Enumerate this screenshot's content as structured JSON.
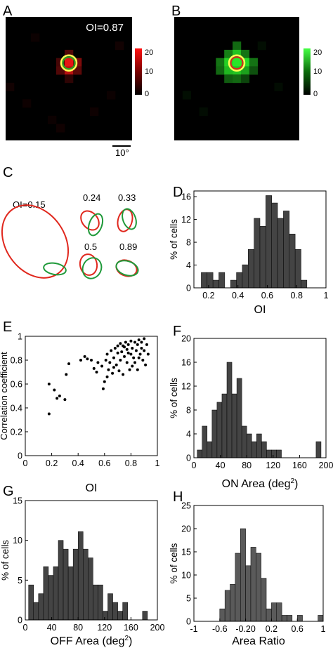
{
  "panels": {
    "A": {
      "letter": "A",
      "oi_label": "OI=0.87",
      "colorbar_ticks": [
        "20",
        "10",
        "0"
      ],
      "scalebar_label": "10°",
      "colormap": "red"
    },
    "B": {
      "letter": "B",
      "colorbar_ticks": [
        "20",
        "10",
        "0"
      ],
      "colormap": "green"
    },
    "C": {
      "letter": "C",
      "examples": [
        "OI=0.15",
        "0.24",
        "0.33",
        "0.5",
        "0.89"
      ],
      "colors": {
        "on": "#e0281e",
        "off": "#1f9a3a"
      }
    }
  },
  "chart_data": [
    {
      "id": "D",
      "letter": "D",
      "type": "bar",
      "xlabel": "OI",
      "ylabel": "% of cells",
      "xlim": [
        0.1,
        1.0
      ],
      "ylim": [
        0,
        17
      ],
      "xticks": [
        "0.2",
        "0.4",
        "0.6",
        "0.8",
        "1"
      ],
      "xtick_values": [
        0.2,
        0.4,
        0.6,
        0.8,
        1.0
      ],
      "yticks": [
        "0",
        "4",
        "8",
        "12",
        "16"
      ],
      "ytick_values": [
        0,
        4,
        8,
        12,
        16
      ],
      "bin_start": 0.15,
      "bin_width": 0.04,
      "values": [
        2.7,
        2.7,
        1.35,
        2.7,
        0,
        1.35,
        2.7,
        4.05,
        6.75,
        12.2,
        10.8,
        16.2,
        14.9,
        12.2,
        13.5,
        9.45,
        6.75,
        1.35
      ],
      "color": "#444444"
    },
    {
      "id": "E",
      "letter": "E",
      "type": "scatter",
      "xlabel": "OI",
      "ylabel": "Correlation coefficient",
      "xlim": [
        0,
        1
      ],
      "ylim": [
        0,
        1
      ],
      "xticks": [
        "0",
        "0.2",
        "0.4",
        "0.6",
        "0.8",
        "1"
      ],
      "xtick_values": [
        0,
        0.2,
        0.4,
        0.6,
        0.8,
        1
      ],
      "yticks": [
        "0",
        "0.2",
        "0.4",
        "0.6",
        "0.8",
        "1"
      ],
      "ytick_values": [
        0,
        0.2,
        0.4,
        0.6,
        0.8,
        1
      ],
      "points": [
        [
          0.18,
          0.35
        ],
        [
          0.18,
          0.6
        ],
        [
          0.22,
          0.55
        ],
        [
          0.24,
          0.48
        ],
        [
          0.26,
          0.5
        ],
        [
          0.3,
          0.47
        ],
        [
          0.31,
          0.68
        ],
        [
          0.33,
          0.77
        ],
        [
          0.42,
          0.8
        ],
        [
          0.45,
          0.83
        ],
        [
          0.47,
          0.81
        ],
        [
          0.5,
          0.8
        ],
        [
          0.52,
          0.73
        ],
        [
          0.54,
          0.7
        ],
        [
          0.55,
          0.78
        ],
        [
          0.58,
          0.75
        ],
        [
          0.59,
          0.56
        ],
        [
          0.6,
          0.62
        ],
        [
          0.61,
          0.8
        ],
        [
          0.62,
          0.85
        ],
        [
          0.63,
          0.72
        ],
        [
          0.64,
          0.78
        ],
        [
          0.65,
          0.88
        ],
        [
          0.66,
          0.69
        ],
        [
          0.67,
          0.82
        ],
        [
          0.68,
          0.9
        ],
        [
          0.69,
          0.76
        ],
        [
          0.7,
          0.86
        ],
        [
          0.7,
          0.92
        ],
        [
          0.71,
          0.71
        ],
        [
          0.72,
          0.94
        ],
        [
          0.72,
          0.8
        ],
        [
          0.73,
          0.87
        ],
        [
          0.74,
          0.68
        ],
        [
          0.75,
          0.91
        ],
        [
          0.75,
          0.83
        ],
        [
          0.76,
          0.95
        ],
        [
          0.77,
          0.78
        ],
        [
          0.77,
          0.89
        ],
        [
          0.78,
          0.93
        ],
        [
          0.79,
          0.72
        ],
        [
          0.8,
          0.96
        ],
        [
          0.8,
          0.85
        ],
        [
          0.81,
          0.9
        ],
        [
          0.82,
          0.82
        ],
        [
          0.83,
          0.95
        ],
        [
          0.83,
          0.78
        ],
        [
          0.84,
          0.88
        ],
        [
          0.85,
          0.93
        ],
        [
          0.85,
          0.72
        ],
        [
          0.86,
          0.97
        ],
        [
          0.87,
          0.85
        ],
        [
          0.88,
          0.9
        ],
        [
          0.88,
          0.95
        ],
        [
          0.89,
          0.8
        ],
        [
          0.9,
          0.98
        ],
        [
          0.9,
          0.88
        ],
        [
          0.91,
          0.76
        ],
        [
          0.92,
          0.93
        ],
        [
          0.93,
          0.85
        ],
        [
          0.62,
          0.66
        ],
        [
          0.67,
          0.74
        ],
        [
          0.74,
          0.92
        ],
        [
          0.78,
          0.86
        ],
        [
          0.81,
          0.75
        ],
        [
          0.86,
          0.82
        ]
      ]
    },
    {
      "id": "F",
      "letter": "F",
      "type": "bar",
      "xlabel": "ON Area (deg",
      "xlabel_sup": "2",
      "xlabel_end": ")",
      "ylabel": "% of cells",
      "xlim": [
        0,
        200
      ],
      "ylim": [
        0,
        20
      ],
      "xticks": [
        "0",
        "40",
        "80",
        "120",
        "160",
        "200"
      ],
      "xtick_values": [
        0,
        40,
        80,
        120,
        160,
        200
      ],
      "yticks": [
        "0",
        "4",
        "8",
        "12",
        "16",
        "20"
      ],
      "ytick_values": [
        0,
        4,
        8,
        12,
        16,
        20
      ],
      "bin_start": 5,
      "bin_width": 7.5,
      "values": [
        1.3,
        5.3,
        2.7,
        8.0,
        9.3,
        10.7,
        16.0,
        10.7,
        13.3,
        5.3,
        4.0,
        2.7,
        4.0,
        2.7,
        1.3,
        1.3,
        1.3,
        0,
        0,
        0,
        0,
        0,
        0,
        0,
        2.7
      ],
      "color": "#444444"
    },
    {
      "id": "G",
      "letter": "G",
      "type": "bar",
      "xlabel": "OFF Area (deg",
      "xlabel_sup": "2",
      "xlabel_end": ")",
      "ylabel": "% of cells",
      "xlim": [
        0,
        200
      ],
      "ylim": [
        0,
        15
      ],
      "xticks": [
        "0",
        "40",
        "80",
        "120",
        "160",
        "200"
      ],
      "xtick_values": [
        0,
        40,
        80,
        120,
        160,
        200
      ],
      "yticks": [
        "0",
        "5",
        "10",
        "15"
      ],
      "ytick_values": [
        0,
        5,
        10,
        15
      ],
      "bin_start": 5,
      "bin_width": 7.5,
      "values": [
        4.4,
        2.2,
        3.3,
        6.7,
        5.6,
        6.7,
        10.0,
        8.9,
        6.7,
        8.9,
        11.1,
        8.9,
        7.8,
        4.4,
        4.4,
        1.1,
        3.3,
        2.2,
        1.1,
        2.2,
        0,
        0,
        0,
        1.1
      ],
      "color": "#444444"
    },
    {
      "id": "H",
      "letter": "H",
      "type": "bar",
      "xlabel": "Area Ratio",
      "ylabel": "% of cells",
      "xlim": [
        -1,
        1
      ],
      "ylim": [
        0,
        25
      ],
      "xticks": [
        "-1",
        "-0.6",
        "-0.20",
        "0.2",
        "0.6",
        "1"
      ],
      "xtick_values": [
        -1,
        -0.6,
        -0.2,
        0.2,
        0.6,
        1
      ],
      "yticks": [
        "0",
        "5",
        "10",
        "15",
        "20",
        "25"
      ],
      "ytick_values": [
        0,
        5,
        10,
        15,
        20,
        25
      ],
      "bin_start": -0.6,
      "bin_width": 0.08,
      "values": [
        2.7,
        6.7,
        8.0,
        14.7,
        20.0,
        12.0,
        16.0,
        14.7,
        9.3,
        2.7,
        4.0,
        4.0,
        1.3,
        1.3,
        0,
        1.3,
        0,
        0,
        0,
        1.3
      ],
      "color": "#5a5a5a"
    }
  ]
}
